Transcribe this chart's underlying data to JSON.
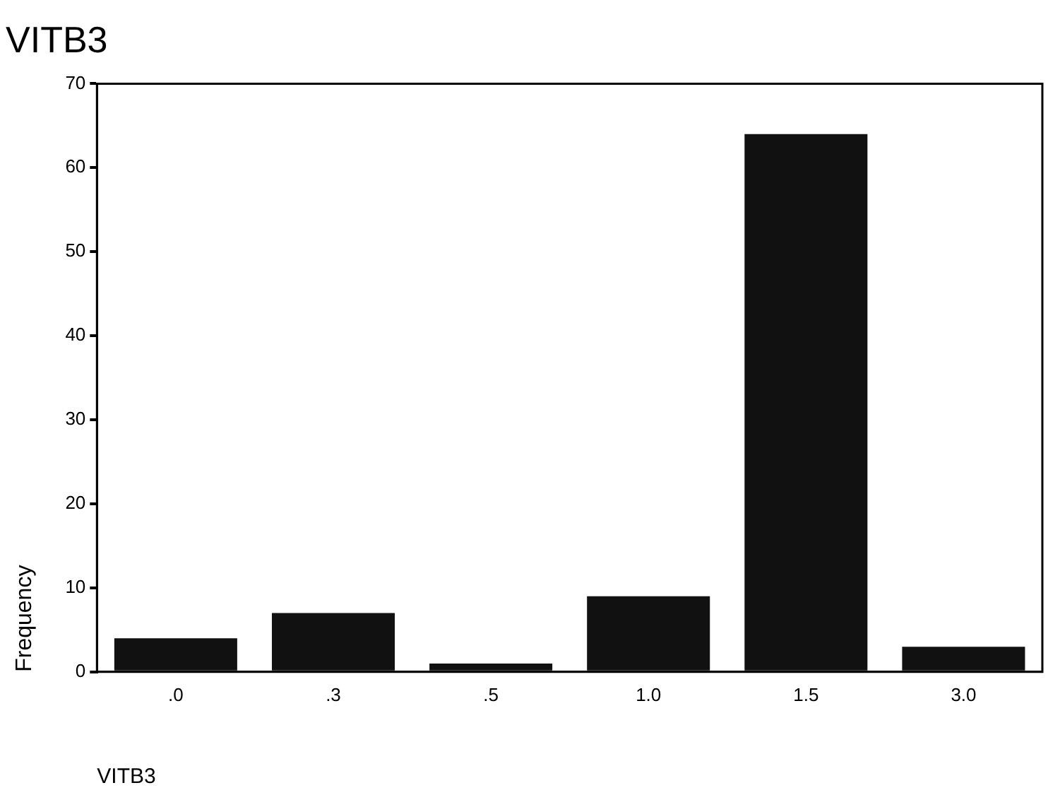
{
  "chart_data": {
    "type": "bar",
    "title": "VITB3",
    "xlabel": "VITB3",
    "ylabel": "Frequency",
    "categories": [
      ".0",
      ".3",
      ".5",
      "1.0",
      "1.5",
      "3.0"
    ],
    "values": [
      4,
      7,
      1,
      9,
      64,
      3
    ],
    "color": "#111111",
    "ylim": [
      0,
      70
    ],
    "yticks": [
      0,
      10,
      20,
      30,
      40,
      50,
      60,
      70
    ],
    "grid": false,
    "legend": false
  }
}
